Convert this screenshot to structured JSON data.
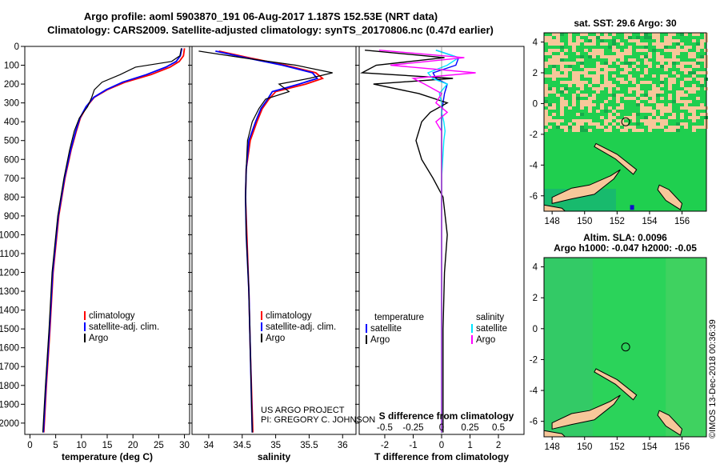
{
  "header": {
    "line1": "Argo profile: aoml 5903870_191 06-Aug-2017 1.187S 152.53E (NRT data)",
    "line2": "Climatology: CARS2009. Satellite-adjusted climatology: synTS_20170806.nc (0.47d earlier)"
  },
  "watermark": "©IMOS 13-Dec-2018 00:36:39",
  "project_credit": {
    "line1": "US ARGO PROJECT",
    "line2": "PI: GREGORY C. JOHNSON"
  },
  "colors": {
    "climatology": "#ff0000",
    "satellite": "#0000ff",
    "argo": "#000000",
    "salinity_satellite": "#00e5ff",
    "salinity_argo": "#ff00ff",
    "land": "#f7c79a",
    "ocean": "#22c55a"
  },
  "chart_data": [
    {
      "type": "line",
      "panel": "temperature",
      "xlabel": "temperature (deg C)",
      "ylabel": "",
      "xlim": [
        -1,
        31
      ],
      "ylim": [
        2060,
        0
      ],
      "xticks": [
        0,
        5,
        10,
        15,
        20,
        25,
        30
      ],
      "yticks": [
        0,
        100,
        200,
        300,
        400,
        500,
        600,
        700,
        800,
        900,
        1000,
        1100,
        1200,
        1300,
        1400,
        1500,
        1600,
        1700,
        1800,
        1900,
        2000
      ],
      "depth": [
        10,
        50,
        80,
        110,
        150,
        190,
        230,
        270,
        320,
        380,
        450,
        550,
        700,
        900,
        1200,
        1500,
        1800,
        2050
      ],
      "legend": [
        "climatology",
        "satellite-adj. clim.",
        "Argo"
      ],
      "series": [
        {
          "name": "climatology",
          "values": [
            30.0,
            29.8,
            29.0,
            27.2,
            23.5,
            18.5,
            15.0,
            12.5,
            11.0,
            9.8,
            9.0,
            8.0,
            6.8,
            5.6,
            4.5,
            3.9,
            3.2,
            2.7
          ]
        },
        {
          "name": "satellite-adj. clim.",
          "values": [
            29.5,
            29.2,
            28.4,
            26.4,
            22.6,
            18.0,
            14.8,
            12.4,
            10.9,
            9.7,
            8.9,
            7.9,
            6.7,
            5.5,
            4.4,
            3.8,
            3.1,
            2.6
          ]
        },
        {
          "name": "Argo",
          "values": [
            29.4,
            29.1,
            27.5,
            20.5,
            17.5,
            14.0,
            12.5,
            12.0,
            11.2,
            9.6,
            8.6,
            7.7,
            6.6,
            5.4,
            4.3,
            3.7,
            3.0,
            2.5
          ]
        }
      ]
    },
    {
      "type": "line",
      "panel": "salinity",
      "xlabel": "salinity",
      "ylabel": "",
      "xlim": [
        33.75,
        36.2
      ],
      "ylim": [
        2060,
        0
      ],
      "xticks": [
        34,
        34.5,
        35,
        35.5,
        36
      ],
      "depth": [
        25,
        60,
        100,
        140,
        170,
        200,
        240,
        280,
        330,
        400,
        500,
        650,
        800,
        1000,
        1300,
        1600,
        2050
      ],
      "legend": [
        "climatology",
        "satellite-adj. clim.",
        "Argo"
      ],
      "series": [
        {
          "name": "climatology",
          "values": [
            34.15,
            34.6,
            35.15,
            35.6,
            35.7,
            35.45,
            35.0,
            34.9,
            34.8,
            34.72,
            34.62,
            34.56,
            34.55,
            34.57,
            34.6,
            34.62,
            34.66
          ]
        },
        {
          "name": "satellite-adj. clim.",
          "values": [
            34.1,
            34.55,
            35.1,
            35.55,
            35.62,
            35.35,
            34.95,
            34.88,
            34.78,
            34.7,
            34.6,
            34.56,
            34.55,
            34.56,
            34.6,
            34.62,
            34.65
          ]
        },
        {
          "name": "Argo",
          "values": [
            33.85,
            34.5,
            35.3,
            35.85,
            35.5,
            35.05,
            35.2,
            34.85,
            34.75,
            34.65,
            34.58,
            34.56,
            34.55,
            34.56,
            34.6,
            34.62,
            34.65
          ]
        }
      ]
    },
    {
      "type": "line",
      "panel": "difference",
      "xlabel": "T difference from climatology",
      "x2label": "S difference from climatology",
      "xlim": [
        -2.9,
        2.9
      ],
      "ylim": [
        2060,
        0
      ],
      "xticks": [
        -2,
        -1,
        0,
        1,
        2
      ],
      "x2ticks": [
        "-0.5",
        "-0.25",
        "0",
        "0.25",
        "0.5"
      ],
      "depth": [
        20,
        60,
        100,
        140,
        170,
        200,
        250,
        300,
        350,
        400,
        450,
        500,
        600,
        700,
        800,
        1000,
        1200,
        1500,
        1800,
        2050
      ],
      "legend_temperature": [
        "temperature",
        "satellite",
        "Argo"
      ],
      "legend_salinity": [
        "salinity",
        "satellite",
        "Argo"
      ],
      "series": [
        {
          "name": "temperature satellite",
          "values": [
            -0.2,
            0.6,
            0.5,
            -0.3,
            -0.2,
            0.2,
            0.1,
            0.05,
            0.0,
            0.0,
            0.0,
            0.0,
            0.0,
            0.0,
            0.0,
            0.0,
            0.0,
            0.0,
            0.0,
            0.0
          ]
        },
        {
          "name": "temperature Argo",
          "values": [
            -2.7,
            0.1,
            -2.3,
            -2.8,
            0.4,
            -2.4,
            -0.8,
            0.2,
            -0.4,
            -0.7,
            -0.8,
            -0.9,
            -0.7,
            -0.3,
            0.05,
            0.2,
            0.1,
            0.05,
            0.05,
            0.05
          ]
        },
        {
          "name": "salinity satellite",
          "values": [
            -0.05,
            0.15,
            0.05,
            -0.12,
            -0.08,
            0.05,
            -0.02,
            0.0,
            0.0,
            0.02,
            0.03,
            0.02,
            0.01,
            0.0,
            0.0,
            0.0,
            0.0,
            0.0,
            0.0,
            0.0
          ]
        },
        {
          "name": "salinity Argo",
          "values": [
            -0.55,
            0.2,
            -0.45,
            0.3,
            -0.25,
            -0.15,
            0.0,
            -0.05,
            0.05,
            -0.05,
            0.0,
            0.0,
            0.0,
            0.0,
            0.0,
            0.0,
            0.0,
            0.0,
            0.0,
            0.0
          ]
        }
      ]
    },
    {
      "type": "heatmap",
      "panel": "sst-map",
      "title": "sat. SST: 29.6 Argo: 30",
      "xlim": [
        147.5,
        157.5
      ],
      "ylim": [
        -7,
        4.6
      ],
      "xticks": [
        148,
        150,
        152,
        154,
        156
      ],
      "yticks": [
        -6,
        -4,
        -2,
        0,
        2,
        4
      ],
      "float_position": [
        152.53,
        -1.187
      ]
    },
    {
      "type": "heatmap",
      "panel": "sla-map",
      "title_line1": "Altim. SLA: 0.0096",
      "title_line2": "Argo h1000: -0.047 h2000: -0.05",
      "xlim": [
        147.5,
        157.5
      ],
      "ylim": [
        -7,
        4.6
      ],
      "xticks": [
        148,
        150,
        152,
        154,
        156
      ],
      "yticks": [
        -6,
        -4,
        -2,
        0,
        2,
        4
      ],
      "float_position": [
        152.53,
        -1.187
      ]
    }
  ]
}
